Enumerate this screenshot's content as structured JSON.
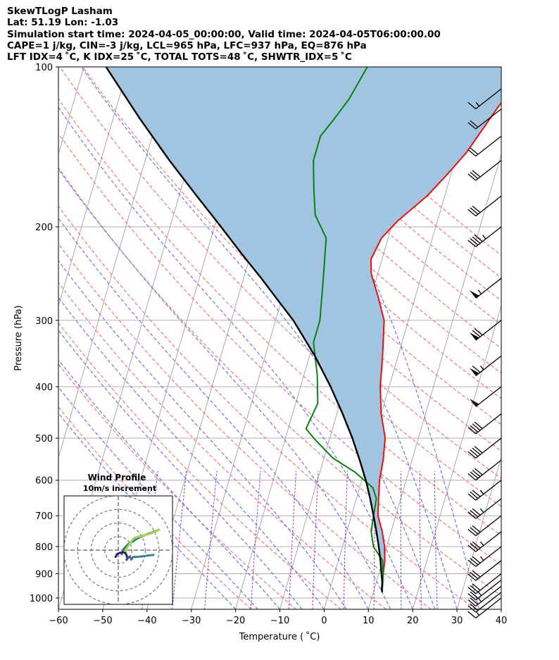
{
  "header": {
    "title": "SkewTLogP Lasham",
    "location": "Lat: 51.19   Lon: -1.03",
    "simulation": "Simulation start time: 2024-04-05_00:00:00, Valid time: 2024-04-05T06:00:00.00",
    "indices_1": "CAPE=1 j/kg, CIN=-3 j/kg, LCL=965 hPa, LFC=937 hPa, EQ=876 hPa",
    "indices_2": "LFT IDX=4 ˚C, K IDX=25 ˚C, TOTAL TOTS=48 ˚C, SHWTR_IDX=5 ˚C"
  },
  "chart_data": {
    "type": "line",
    "subtype": "skew-t log-p",
    "xlabel": "Temperature ( ˚C)",
    "ylabel": "Pressure (hPa)",
    "xlim": [
      -60,
      40
    ],
    "ylim": [
      1050,
      100
    ],
    "y_scale": "log",
    "skew_deg_per_decade": 35,
    "x_ticks": [
      -60,
      -50,
      -40,
      -30,
      -20,
      -10,
      0,
      10,
      20,
      30,
      40
    ],
    "y_ticks": [
      1000,
      900,
      800,
      700,
      600,
      500,
      400,
      300,
      200,
      100
    ],
    "grid": true,
    "series": [
      {
        "role": "temperature",
        "color": "#ff0000",
        "points": [
          [
            12,
            975
          ],
          [
            11.5,
            950
          ],
          [
            11,
            900
          ],
          [
            10.5,
            850
          ],
          [
            9.5,
            800
          ],
          [
            8,
            750
          ],
          [
            6,
            700
          ],
          [
            5,
            650
          ],
          [
            4,
            600
          ],
          [
            3.5,
            550
          ],
          [
            2.5,
            500
          ],
          [
            0,
            450
          ],
          [
            -2,
            400
          ],
          [
            -3.5,
            350
          ],
          [
            -5.5,
            300
          ],
          [
            -8.5,
            270
          ],
          [
            -11.5,
            245
          ],
          [
            -12.5,
            230
          ],
          [
            -11.5,
            210
          ],
          [
            -9,
            195
          ],
          [
            -4,
            175
          ],
          [
            -1,
            160
          ],
          [
            2,
            145
          ],
          [
            4,
            132
          ],
          [
            6,
            120
          ],
          [
            8,
            110
          ],
          [
            9,
            100
          ]
        ]
      },
      {
        "role": "dewpoint",
        "color": "#008000",
        "points": [
          [
            12,
            975
          ],
          [
            11,
            900
          ],
          [
            10,
            850
          ],
          [
            7,
            800
          ],
          [
            5.5,
            750
          ],
          [
            5,
            700
          ],
          [
            4.5,
            650
          ],
          [
            3,
            620
          ],
          [
            -2,
            580
          ],
          [
            -8,
            545
          ],
          [
            -13,
            505
          ],
          [
            -16,
            480
          ],
          [
            -15,
            430
          ],
          [
            -17,
            380
          ],
          [
            -20,
            330
          ],
          [
            -20,
            300
          ],
          [
            -22,
            250
          ],
          [
            -24,
            210
          ],
          [
            -28,
            190
          ],
          [
            -30,
            170
          ],
          [
            -32,
            150
          ],
          [
            -32,
            135
          ],
          [
            -30,
            125
          ],
          [
            -28,
            115
          ],
          [
            -26,
            100
          ]
        ]
      },
      {
        "role": "parcel",
        "color": "#000000",
        "points": [
          [
            12,
            975
          ],
          [
            11.7,
            965
          ],
          [
            11.4,
            937
          ],
          [
            10.6,
            900
          ],
          [
            9.5,
            850
          ],
          [
            8.2,
            800
          ],
          [
            6.7,
            750
          ],
          [
            5,
            700
          ],
          [
            3.1,
            650
          ],
          [
            0.9,
            600
          ],
          [
            -1.8,
            550
          ],
          [
            -4.9,
            500
          ],
          [
            -8.7,
            450
          ],
          [
            -13.2,
            400
          ],
          [
            -18.8,
            350
          ],
          [
            -26,
            300
          ],
          [
            -30.8,
            275
          ],
          [
            -36,
            250
          ],
          [
            -42,
            225
          ],
          [
            -48.5,
            200
          ],
          [
            -56,
            175
          ],
          [
            -64.5,
            150
          ],
          [
            -74,
            125
          ],
          [
            -85,
            100
          ]
        ]
      }
    ],
    "dry_adiabats_theta_c": [
      -20,
      -10,
      0,
      10,
      20,
      30,
      40,
      50,
      60,
      70,
      80,
      90,
      100,
      110,
      120,
      130,
      140,
      150,
      160,
      170
    ],
    "moist_adiabats_start_c": [
      -20,
      -15,
      -10,
      -5,
      0,
      5,
      10,
      15,
      20,
      25,
      30,
      35
    ],
    "mixing_ratios_gkg": [
      0.1,
      0.2,
      0.4,
      1,
      2,
      3,
      5,
      8,
      12,
      16,
      20
    ],
    "wind_barbs": [
      {
        "p": 1000,
        "speed_kt": 15
      },
      {
        "p": 975,
        "speed_kt": 20
      },
      {
        "p": 950,
        "speed_kt": 25
      },
      {
        "p": 925,
        "speed_kt": 25
      },
      {
        "p": 900,
        "speed_kt": 30
      },
      {
        "p": 850,
        "speed_kt": 30
      },
      {
        "p": 800,
        "speed_kt": 35
      },
      {
        "p": 750,
        "speed_kt": 35
      },
      {
        "p": 700,
        "speed_kt": 30
      },
      {
        "p": 650,
        "speed_kt": 35
      },
      {
        "p": 600,
        "speed_kt": 35
      },
      {
        "p": 550,
        "speed_kt": 40
      },
      {
        "p": 500,
        "speed_kt": 40
      },
      {
        "p": 450,
        "speed_kt": 40
      },
      {
        "p": 400,
        "speed_kt": 50
      },
      {
        "p": 350,
        "speed_kt": 65
      },
      {
        "p": 300,
        "speed_kt": 70
      },
      {
        "p": 250,
        "speed_kt": 55
      },
      {
        "p": 200,
        "speed_kt": 45
      },
      {
        "p": 175,
        "speed_kt": 30
      },
      {
        "p": 150,
        "speed_kt": 30
      },
      {
        "p": 135,
        "speed_kt": 20
      },
      {
        "p": 120,
        "speed_kt": 20
      },
      {
        "p": 110,
        "speed_kt": 15
      }
    ],
    "inset": {
      "title": "Wind Profile",
      "subtitle": "10m/s increment",
      "ring_step_ms": 10,
      "range_ms": 40,
      "hodograph_uv": [
        [
          2.5,
          -3.0
        ],
        [
          4.0,
          1.0
        ],
        [
          8.0,
          5.0
        ],
        [
          11.0,
          6.5
        ],
        [
          13.0,
          8.0
        ],
        [
          15.0,
          9.0
        ],
        [
          18.0,
          10.5
        ],
        [
          22.0,
          12.0
        ],
        [
          25.0,
          13.0
        ],
        [
          27.5,
          14.0
        ],
        [
          30.0,
          15.0
        ]
      ],
      "hodograph_uv_2": [
        [
          5.5,
          -1.5
        ],
        [
          6.0,
          1.0
        ],
        [
          8.0,
          4.0
        ],
        [
          10.0,
          7.0
        ],
        [
          12.0,
          9.0
        ],
        [
          15.0,
          10.0
        ],
        [
          19.0,
          11.0
        ],
        [
          23.0,
          12.0
        ],
        [
          26.0,
          13.0
        ],
        [
          30.0,
          15.0
        ]
      ],
      "hodograph_uv_3": [
        [
          -2.0,
          -5.0
        ],
        [
          -1.0,
          -3.0
        ],
        [
          1.0,
          -2.0
        ],
        [
          3.5,
          -1.5
        ],
        [
          5.0,
          -2.0
        ],
        [
          6.0,
          -3.5
        ],
        [
          6.5,
          -5.5
        ]
      ],
      "hodograph_uv_4": [
        [
          6.0,
          -7.0
        ],
        [
          7.0,
          -6.0
        ],
        [
          8.0,
          -5.0
        ],
        [
          9.0,
          -5.5
        ],
        [
          10.0,
          -6.5
        ]
      ],
      "hodograph_uv_5": [
        [
          9.5,
          -7.0
        ],
        [
          11.0,
          -5.0
        ],
        [
          14.0,
          -5.0
        ],
        [
          18.0,
          -4.5
        ],
        [
          22.0,
          -4.0
        ],
        [
          26.0,
          -3.5
        ]
      ]
    }
  }
}
